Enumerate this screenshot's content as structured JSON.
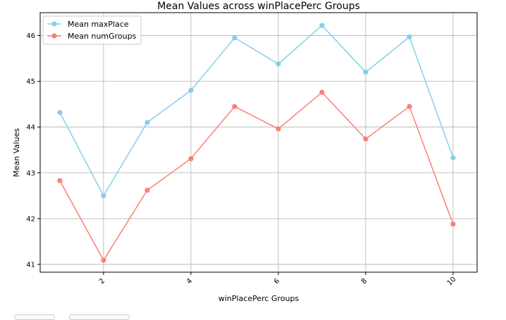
{
  "chart_data": {
    "type": "line",
    "title": "Mean Values across winPlacePerc Groups",
    "xlabel": "winPlacePerc Groups",
    "ylabel": "Mean Values",
    "x": [
      1,
      2,
      3,
      4,
      5,
      6,
      7,
      8,
      9,
      10
    ],
    "xticks": [
      "2",
      "4",
      "6",
      "8",
      "10"
    ],
    "yticks": [
      "41",
      "42",
      "43",
      "44",
      "45",
      "46"
    ],
    "xlim": [
      0.55,
      10.55
    ],
    "ylim": [
      40.83,
      46.5
    ],
    "grid": true,
    "legend_position": "top-left",
    "series": [
      {
        "name": "Mean maxPlace",
        "color": "#87CEEB",
        "values": [
          44.32,
          42.5,
          44.1,
          44.8,
          45.95,
          45.38,
          46.22,
          45.2,
          45.97,
          43.33
        ]
      },
      {
        "name": "Mean numGroups",
        "color": "#FA8072",
        "values": [
          42.83,
          41.09,
          42.62,
          43.31,
          44.45,
          43.96,
          44.76,
          43.74,
          44.45,
          41.88
        ]
      }
    ]
  }
}
